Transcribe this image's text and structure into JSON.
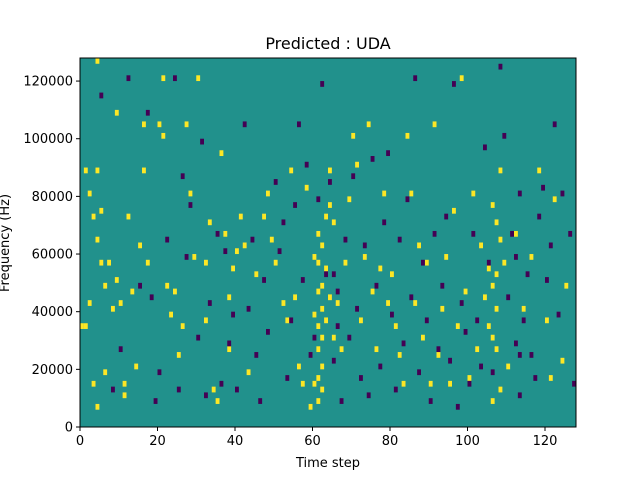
{
  "chart_data": {
    "type": "heatmap",
    "title": "Predicted : UDA",
    "xlabel": "Time step",
    "ylabel": "Frequency (Hz)",
    "xlim": [
      0,
      128
    ],
    "ylim": [
      0,
      128000
    ],
    "xticks": [
      0,
      20,
      40,
      60,
      80,
      100,
      120
    ],
    "xtick_labels": [
      "0",
      "20",
      "40",
      "60",
      "80",
      "100",
      "120"
    ],
    "yticks": [
      0,
      20000,
      40000,
      60000,
      80000,
      100000,
      120000
    ],
    "ytick_labels": [
      "0",
      "20000",
      "40000",
      "60000",
      "80000",
      "100000",
      "120000"
    ],
    "colormap": "viridis",
    "colors": {
      "background": "#21918c",
      "positive": "#fde725",
      "negative": "#440154"
    },
    "grid": false,
    "legend": "none",
    "cells": {
      "cell_width_steps": 1,
      "cell_height_hz": 2000,
      "yellow": [
        [
          0,
          34000
        ],
        [
          1,
          34000
        ],
        [
          1,
          88000
        ],
        [
          2,
          42000
        ],
        [
          2,
          80000
        ],
        [
          3,
          72000
        ],
        [
          3,
          14000
        ],
        [
          4,
          126000
        ],
        [
          4,
          64000
        ],
        [
          4,
          88000
        ],
        [
          4,
          6000
        ],
        [
          5,
          74000
        ],
        [
          5,
          56000
        ],
        [
          6,
          48000
        ],
        [
          6,
          18000
        ],
        [
          7,
          56000
        ],
        [
          8,
          40000
        ],
        [
          9,
          108000
        ],
        [
          9,
          50000
        ],
        [
          10,
          42000
        ],
        [
          11,
          14000
        ],
        [
          11,
          10000
        ],
        [
          12,
          72000
        ],
        [
          13,
          46000
        ],
        [
          14,
          20000
        ],
        [
          15,
          62000
        ],
        [
          16,
          104000
        ],
        [
          16,
          88000
        ],
        [
          17,
          56000
        ],
        [
          20,
          104000
        ],
        [
          21,
          120000
        ],
        [
          21,
          100000
        ],
        [
          22,
          48000
        ],
        [
          23,
          38000
        ],
        [
          24,
          46000
        ],
        [
          25,
          24000
        ],
        [
          26,
          34000
        ],
        [
          27,
          104000
        ],
        [
          28,
          80000
        ],
        [
          29,
          58000
        ],
        [
          30,
          120000
        ],
        [
          32,
          56000
        ],
        [
          32,
          36000
        ],
        [
          33,
          70000
        ],
        [
          34,
          12000
        ],
        [
          35,
          8000
        ],
        [
          36,
          94000
        ],
        [
          37,
          66000
        ],
        [
          38,
          44000
        ],
        [
          38,
          26000
        ],
        [
          39,
          54000
        ],
        [
          40,
          60000
        ],
        [
          41,
          72000
        ],
        [
          42,
          62000
        ],
        [
          43,
          18000
        ],
        [
          45,
          52000
        ],
        [
          47,
          72000
        ],
        [
          48,
          80000
        ],
        [
          49,
          64000
        ],
        [
          50,
          56000
        ],
        [
          52,
          42000
        ],
        [
          53,
          36000
        ],
        [
          54,
          88000
        ],
        [
          55,
          44000
        ],
        [
          56,
          20000
        ],
        [
          57,
          14000
        ],
        [
          58,
          82000
        ],
        [
          59,
          6000
        ],
        [
          60,
          58000
        ],
        [
          60,
          38000
        ],
        [
          60,
          14000
        ],
        [
          61,
          66000
        ],
        [
          61,
          56000
        ],
        [
          61,
          46000
        ],
        [
          61,
          34000
        ],
        [
          61,
          26000
        ],
        [
          61,
          16000
        ],
        [
          61,
          8000
        ],
        [
          62,
          62000
        ],
        [
          62,
          48000
        ],
        [
          62,
          40000
        ],
        [
          62,
          30000
        ],
        [
          62,
          20000
        ],
        [
          62,
          12000
        ],
        [
          63,
          72000
        ],
        [
          63,
          54000
        ],
        [
          63,
          36000
        ],
        [
          64,
          88000
        ],
        [
          64,
          76000
        ],
        [
          64,
          44000
        ],
        [
          65,
          70000
        ],
        [
          65,
          30000
        ],
        [
          66,
          42000
        ],
        [
          67,
          26000
        ],
        [
          68,
          56000
        ],
        [
          69,
          78000
        ],
        [
          70,
          100000
        ],
        [
          71,
          90000
        ],
        [
          72,
          36000
        ],
        [
          73,
          58000
        ],
        [
          74,
          104000
        ],
        [
          75,
          46000
        ],
        [
          76,
          26000
        ],
        [
          77,
          54000
        ],
        [
          78,
          80000
        ],
        [
          79,
          42000
        ],
        [
          80,
          52000
        ],
        [
          81,
          34000
        ],
        [
          82,
          24000
        ],
        [
          83,
          14000
        ],
        [
          84,
          100000
        ],
        [
          85,
          80000
        ],
        [
          86,
          42000
        ],
        [
          87,
          62000
        ],
        [
          88,
          30000
        ],
        [
          89,
          56000
        ],
        [
          90,
          14000
        ],
        [
          91,
          104000
        ],
        [
          92,
          24000
        ],
        [
          93,
          40000
        ],
        [
          94,
          58000
        ],
        [
          95,
          14000
        ],
        [
          96,
          74000
        ],
        [
          97,
          34000
        ],
        [
          98,
          120000
        ],
        [
          99,
          46000
        ],
        [
          100,
          16000
        ],
        [
          101,
          80000
        ],
        [
          102,
          26000
        ],
        [
          103,
          62000
        ],
        [
          104,
          44000
        ],
        [
          105,
          54000
        ],
        [
          105,
          34000
        ],
        [
          106,
          76000
        ],
        [
          106,
          48000
        ],
        [
          106,
          30000
        ],
        [
          106,
          8000
        ],
        [
          107,
          70000
        ],
        [
          107,
          52000
        ],
        [
          107,
          40000
        ],
        [
          107,
          26000
        ],
        [
          108,
          88000
        ],
        [
          108,
          64000
        ],
        [
          108,
          12000
        ],
        [
          109,
          56000
        ],
        [
          110,
          20000
        ],
        [
          112,
          66000
        ],
        [
          114,
          40000
        ],
        [
          116,
          58000
        ],
        [
          118,
          88000
        ],
        [
          120,
          36000
        ],
        [
          121,
          16000
        ],
        [
          122,
          78000
        ],
        [
          124,
          22000
        ],
        [
          125,
          48000
        ]
      ],
      "purple": [
        [
          5,
          114000
        ],
        [
          8,
          12000
        ],
        [
          10,
          26000
        ],
        [
          12,
          120000
        ],
        [
          15,
          48000
        ],
        [
          17,
          108000
        ],
        [
          18,
          44000
        ],
        [
          19,
          8000
        ],
        [
          20,
          18000
        ],
        [
          22,
          64000
        ],
        [
          24,
          120000
        ],
        [
          25,
          12000
        ],
        [
          26,
          86000
        ],
        [
          27,
          58000
        ],
        [
          28,
          76000
        ],
        [
          30,
          30000
        ],
        [
          31,
          98000
        ],
        [
          32,
          10000
        ],
        [
          33,
          42000
        ],
        [
          35,
          66000
        ],
        [
          36,
          14000
        ],
        [
          37,
          60000
        ],
        [
          38,
          28000
        ],
        [
          39,
          38000
        ],
        [
          40,
          12000
        ],
        [
          42,
          104000
        ],
        [
          43,
          40000
        ],
        [
          44,
          64000
        ],
        [
          45,
          24000
        ],
        [
          46,
          8000
        ],
        [
          47,
          50000
        ],
        [
          48,
          32000
        ],
        [
          50,
          84000
        ],
        [
          51,
          60000
        ],
        [
          52,
          70000
        ],
        [
          53,
          16000
        ],
        [
          54,
          36000
        ],
        [
          55,
          76000
        ],
        [
          56,
          104000
        ],
        [
          57,
          50000
        ],
        [
          58,
          90000
        ],
        [
          59,
          24000
        ],
        [
          60,
          30000
        ],
        [
          61,
          78000
        ],
        [
          62,
          118000
        ],
        [
          63,
          52000
        ],
        [
          64,
          84000
        ],
        [
          65,
          52000
        ],
        [
          65,
          22000
        ],
        [
          66,
          46000
        ],
        [
          66,
          34000
        ],
        [
          67,
          8000
        ],
        [
          68,
          64000
        ],
        [
          69,
          30000
        ],
        [
          70,
          86000
        ],
        [
          71,
          40000
        ],
        [
          72,
          16000
        ],
        [
          73,
          62000
        ],
        [
          74,
          10000
        ],
        [
          75,
          92000
        ],
        [
          76,
          48000
        ],
        [
          77,
          20000
        ],
        [
          78,
          70000
        ],
        [
          79,
          94000
        ],
        [
          80,
          38000
        ],
        [
          81,
          12000
        ],
        [
          82,
          64000
        ],
        [
          83,
          28000
        ],
        [
          84,
          78000
        ],
        [
          85,
          44000
        ],
        [
          86,
          120000
        ],
        [
          87,
          18000
        ],
        [
          88,
          56000
        ],
        [
          89,
          36000
        ],
        [
          90,
          8000
        ],
        [
          91,
          66000
        ],
        [
          92,
          26000
        ],
        [
          93,
          48000
        ],
        [
          94,
          72000
        ],
        [
          95,
          22000
        ],
        [
          96,
          118000
        ],
        [
          97,
          6000
        ],
        [
          98,
          42000
        ],
        [
          99,
          32000
        ],
        [
          100,
          14000
        ],
        [
          101,
          66000
        ],
        [
          102,
          36000
        ],
        [
          103,
          20000
        ],
        [
          104,
          96000
        ],
        [
          105,
          56000
        ],
        [
          106,
          18000
        ],
        [
          108,
          124000
        ],
        [
          109,
          100000
        ],
        [
          110,
          44000
        ],
        [
          111,
          66000
        ],
        [
          112,
          28000
        ],
        [
          112,
          58000
        ],
        [
          113,
          80000
        ],
        [
          113,
          24000
        ],
        [
          113,
          10000
        ],
        [
          114,
          36000
        ],
        [
          115,
          52000
        ],
        [
          116,
          24000
        ],
        [
          117,
          16000
        ],
        [
          118,
          72000
        ],
        [
          119,
          82000
        ],
        [
          120,
          50000
        ],
        [
          121,
          62000
        ],
        [
          122,
          104000
        ],
        [
          123,
          38000
        ],
        [
          124,
          80000
        ],
        [
          126,
          66000
        ],
        [
          127,
          14000
        ]
      ]
    }
  }
}
